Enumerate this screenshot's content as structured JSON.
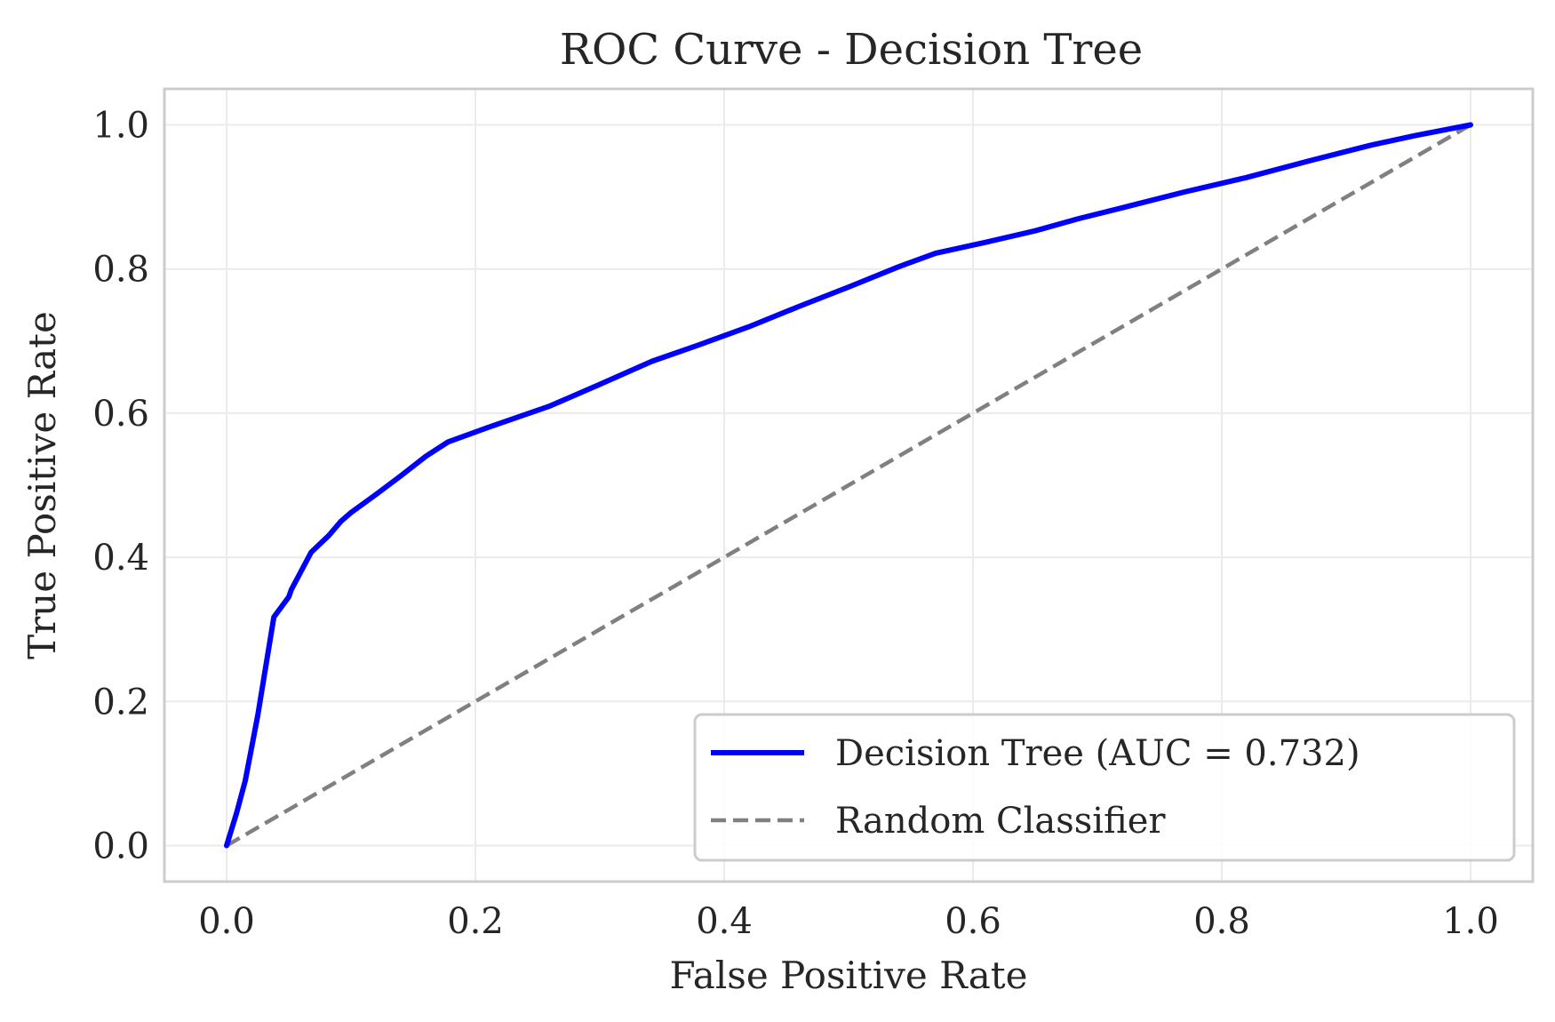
{
  "chart_data": {
    "type": "line",
    "title": "ROC Curve - Decision Tree",
    "xlabel": "False Positive Rate",
    "ylabel": "True Positive Rate",
    "xlim": [
      -0.05,
      1.05
    ],
    "ylim": [
      -0.05,
      1.05
    ],
    "xticks": [
      0.0,
      0.2,
      0.4,
      0.6,
      0.8,
      1.0
    ],
    "yticks": [
      0.0,
      0.2,
      0.4,
      0.6,
      0.8,
      1.0
    ],
    "xtick_labels": [
      "0.0",
      "0.2",
      "0.4",
      "0.6",
      "0.8",
      "1.0"
    ],
    "ytick_labels": [
      "0.0",
      "0.2",
      "0.4",
      "0.6",
      "0.8",
      "1.0"
    ],
    "grid": true,
    "legend_position": "lower-right",
    "series": [
      {
        "name": "Decision Tree (AUC = 0.732)",
        "color": "#0000ff",
        "style": "solid",
        "x": [
          0.0,
          0.008,
          0.015,
          0.025,
          0.038,
          0.05,
          0.052,
          0.068,
          0.082,
          0.092,
          0.1,
          0.12,
          0.14,
          0.16,
          0.178,
          0.21,
          0.26,
          0.3,
          0.342,
          0.38,
          0.42,
          0.46,
          0.5,
          0.54,
          0.57,
          0.61,
          0.65,
          0.685,
          0.72,
          0.77,
          0.82,
          0.87,
          0.92,
          0.955,
          1.0
        ],
        "y": [
          0.0,
          0.045,
          0.09,
          0.18,
          0.317,
          0.345,
          0.355,
          0.407,
          0.43,
          0.45,
          0.462,
          0.487,
          0.513,
          0.54,
          0.56,
          0.58,
          0.61,
          0.64,
          0.672,
          0.695,
          0.72,
          0.748,
          0.775,
          0.803,
          0.822,
          0.837,
          0.853,
          0.87,
          0.885,
          0.907,
          0.927,
          0.95,
          0.972,
          0.985,
          1.0
        ]
      },
      {
        "name": "Random Classifier",
        "color": "#808080",
        "style": "dashed",
        "x": [
          0.0,
          1.0
        ],
        "y": [
          0.0,
          1.0
        ]
      }
    ]
  }
}
